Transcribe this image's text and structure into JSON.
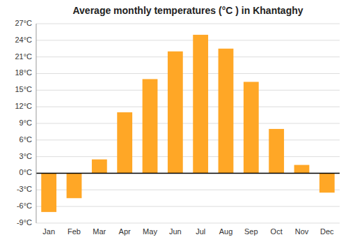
{
  "chart_data": {
    "type": "bar",
    "title": "Average monthly temperatures (°C ) in Khantaghy",
    "categories": [
      "Jan",
      "Feb",
      "Mar",
      "Apr",
      "May",
      "Jun",
      "Jul",
      "Aug",
      "Sep",
      "Oct",
      "Nov",
      "Dec"
    ],
    "values": [
      -7.0,
      -4.5,
      2.5,
      11.0,
      17.0,
      22.0,
      25.0,
      22.5,
      16.5,
      8.0,
      1.5,
      -3.5
    ],
    "color": "#FFA726",
    "ylim": [
      -9,
      27
    ],
    "yticks": [
      {
        "value": -9,
        "label": "-9°C"
      },
      {
        "value": -6,
        "label": "-6°C"
      },
      {
        "value": -3,
        "label": "-3°C"
      },
      {
        "value": 0,
        "label": "0°C"
      },
      {
        "value": 3,
        "label": "3°C"
      },
      {
        "value": 6,
        "label": "6°C"
      },
      {
        "value": 9,
        "label": "9°C"
      },
      {
        "value": 12,
        "label": "12°C"
      },
      {
        "value": 15,
        "label": "15°C"
      },
      {
        "value": 18,
        "label": "18°C"
      },
      {
        "value": 21,
        "label": "21°C"
      },
      {
        "value": 24,
        "label": "24°C"
      },
      {
        "value": 27,
        "label": "27°C"
      }
    ],
    "grid": true
  }
}
